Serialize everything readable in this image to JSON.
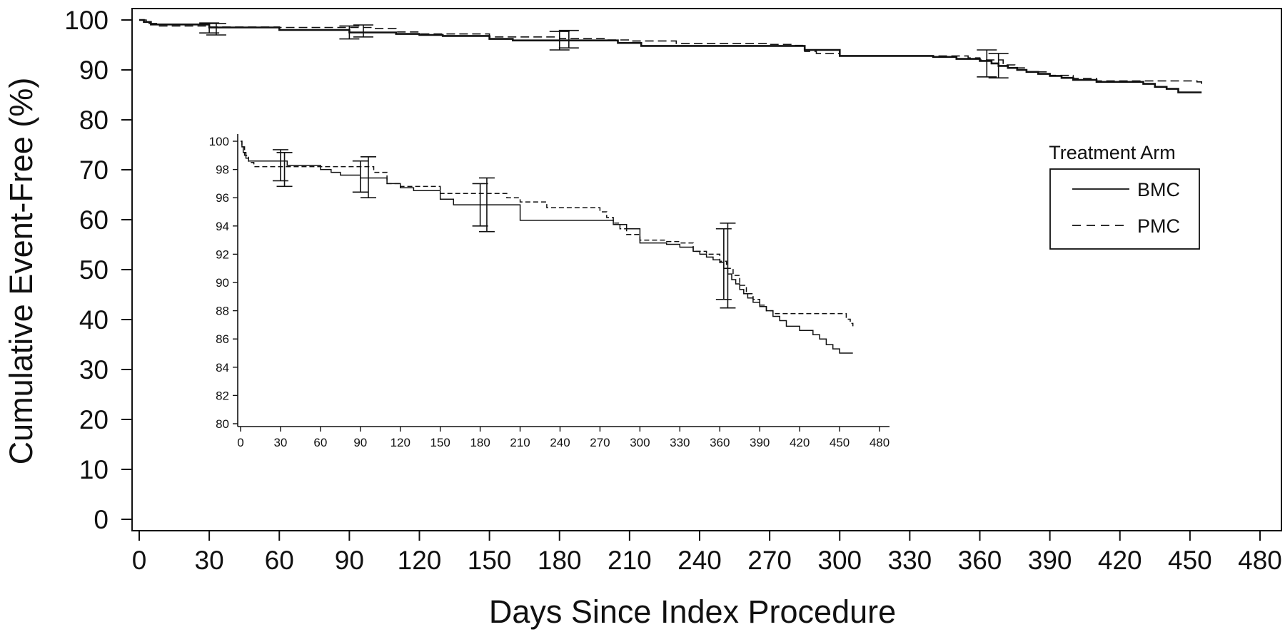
{
  "chart_data": {
    "type": "line",
    "title": "",
    "xlabel": "Days Since Index Procedure",
    "ylabel": "Cumulative Event-Free (%)",
    "xlim": [
      0,
      480
    ],
    "ylim": [
      0,
      100
    ],
    "x_ticks": [
      "0",
      "30",
      "60",
      "90",
      "120",
      "150",
      "180",
      "210",
      "240",
      "270",
      "300",
      "330",
      "360",
      "390",
      "420",
      "450",
      "480"
    ],
    "y_ticks": [
      "0",
      "10",
      "20",
      "30",
      "40",
      "50",
      "60",
      "70",
      "80",
      "90",
      "100"
    ],
    "legend": {
      "title": "Treatment Arm",
      "position": "right",
      "entries": [
        "BMC",
        "PMC"
      ]
    },
    "series": [
      {
        "name": "BMC",
        "line_style": "solid",
        "color": "#111111",
        "x": [
          0,
          2,
          5,
          30,
          60,
          90,
          110,
          120,
          130,
          150,
          160,
          180,
          200,
          205,
          215,
          280,
          285,
          300,
          320,
          340,
          350,
          360,
          365,
          368,
          372,
          376,
          380,
          385,
          390,
          395,
          400,
          410,
          430,
          435,
          440,
          445,
          455
        ],
        "y": [
          100,
          99.6,
          99.1,
          98.5,
          98.0,
          97.5,
          97.2,
          97.0,
          96.8,
          96.2,
          95.9,
          95.9,
          95.9,
          95.4,
          94.8,
          94.8,
          94.0,
          92.8,
          92.8,
          92.6,
          92.2,
          91.8,
          91.3,
          90.8,
          90.4,
          90.0,
          89.6,
          89.2,
          88.8,
          88.4,
          88.0,
          87.6,
          87.2,
          86.6,
          86.2,
          85.5,
          85.5
        ],
        "error_bars": [
          {
            "x": 30,
            "y": 98.4,
            "low": 97.4,
            "high": 99.4
          },
          {
            "x": 90,
            "y": 97.5,
            "low": 96.2,
            "high": 98.8
          },
          {
            "x": 180,
            "y": 95.9,
            "low": 94.0,
            "high": 97.7
          },
          {
            "x": 363,
            "y": 91.4,
            "low": 88.6,
            "high": 94.0
          }
        ]
      },
      {
        "name": "PMC",
        "line_style": "dashed",
        "color": "#111111",
        "x": [
          0,
          3,
          8,
          30,
          60,
          90,
          100,
          110,
          120,
          150,
          180,
          200,
          210,
          230,
          260,
          270,
          280,
          285,
          290,
          300,
          320,
          340,
          355,
          360,
          370,
          375,
          380,
          390,
          400,
          410,
          430,
          450,
          453,
          455
        ],
        "y": [
          100,
          99.3,
          98.8,
          98.6,
          98.5,
          98.5,
          98.3,
          97.6,
          97.2,
          96.6,
          96.3,
          96.0,
          95.8,
          95.3,
          95.3,
          95.1,
          94.9,
          93.7,
          93.3,
          92.8,
          92.8,
          92.8,
          92.4,
          92.0,
          91.0,
          90.4,
          89.6,
          88.9,
          88.3,
          87.8,
          87.8,
          87.8,
          87.6,
          87.2
        ],
        "error_bars": [
          {
            "x": 33,
            "y": 98.3,
            "low": 97.0,
            "high": 99.3
          },
          {
            "x": 96,
            "y": 97.9,
            "low": 96.6,
            "high": 99.0
          },
          {
            "x": 184,
            "y": 96.4,
            "low": 94.4,
            "high": 97.9
          },
          {
            "x": 368,
            "y": 91.2,
            "low": 88.4,
            "high": 93.3
          }
        ]
      }
    ],
    "inset": {
      "type": "line",
      "xlim": [
        0,
        480
      ],
      "ylim": [
        80,
        100
      ],
      "x_ticks": [
        "0",
        "30",
        "60",
        "90",
        "120",
        "150",
        "180",
        "210",
        "240",
        "270",
        "300",
        "330",
        "360",
        "390",
        "420",
        "450",
        "480"
      ],
      "y_ticks": [
        "80",
        "82",
        "84",
        "86",
        "88",
        "90",
        "92",
        "94",
        "96",
        "98",
        "100"
      ],
      "series": [
        {
          "name": "BMC",
          "line_style": "solid",
          "x": [
            0,
            1,
            2,
            4,
            6,
            30,
            35,
            60,
            68,
            75,
            90,
            110,
            120,
            130,
            150,
            160,
            180,
            200,
            210,
            240,
            270,
            280,
            290,
            300,
            320,
            330,
            340,
            345,
            350,
            355,
            360,
            363,
            366,
            369,
            372,
            375,
            378,
            381,
            385,
            390,
            395,
            400,
            405,
            410,
            420,
            430,
            435,
            440,
            445,
            450,
            460
          ],
          "y": [
            100,
            99.6,
            99.2,
            98.8,
            98.6,
            98.6,
            98.3,
            98.0,
            97.8,
            97.6,
            97.4,
            97.0,
            96.7,
            96.5,
            95.9,
            95.5,
            95.5,
            95.5,
            94.4,
            94.4,
            94.4,
            94.1,
            93.8,
            92.8,
            92.7,
            92.5,
            92.2,
            92.0,
            91.8,
            91.6,
            91.4,
            91.0,
            90.6,
            90.2,
            89.9,
            89.5,
            89.2,
            88.9,
            88.6,
            88.3,
            88.0,
            87.6,
            87.3,
            86.9,
            86.6,
            86.3,
            86.0,
            85.6,
            85.3,
            85.0,
            85.0
          ],
          "error_bars": [
            {
              "x": 30,
              "y": 97.9,
              "low": 97.2,
              "high": 99.4
            },
            {
              "x": 90,
              "y": 97.3,
              "low": 96.4,
              "high": 98.6
            },
            {
              "x": 180,
              "y": 95.6,
              "low": 94.0,
              "high": 97.0
            },
            {
              "x": 363,
              "y": 91.3,
              "low": 88.8,
              "high": 93.8
            }
          ]
        },
        {
          "name": "PMC",
          "line_style": "dashed",
          "x": [
            0,
            1,
            3,
            6,
            10,
            30,
            60,
            90,
            100,
            110,
            120,
            150,
            180,
            200,
            210,
            230,
            260,
            270,
            275,
            280,
            285,
            290,
            300,
            320,
            330,
            340,
            350,
            360,
            365,
            370,
            375,
            380,
            385,
            390,
            395,
            400,
            410,
            420,
            450,
            455,
            458,
            460
          ],
          "y": [
            100,
            99.6,
            99.0,
            98.5,
            98.2,
            98.2,
            98.2,
            98.2,
            97.8,
            97.0,
            96.8,
            96.3,
            96.3,
            96.0,
            95.7,
            95.3,
            95.3,
            95.0,
            94.6,
            94.2,
            93.8,
            93.4,
            93.0,
            92.9,
            92.8,
            92.2,
            92.0,
            91.5,
            91.0,
            90.5,
            89.8,
            89.2,
            88.8,
            88.4,
            88.0,
            87.8,
            87.8,
            87.8,
            87.8,
            87.4,
            87.1,
            86.9
          ],
          "error_bars": [
            {
              "x": 33,
              "y": 98.2,
              "low": 96.8,
              "high": 99.2
            },
            {
              "x": 96,
              "y": 97.8,
              "low": 96.0,
              "high": 98.9
            },
            {
              "x": 185,
              "y": 96.0,
              "low": 93.6,
              "high": 97.4
            },
            {
              "x": 366,
              "y": 91.4,
              "low": 88.2,
              "high": 94.2
            }
          ]
        }
      ]
    }
  }
}
